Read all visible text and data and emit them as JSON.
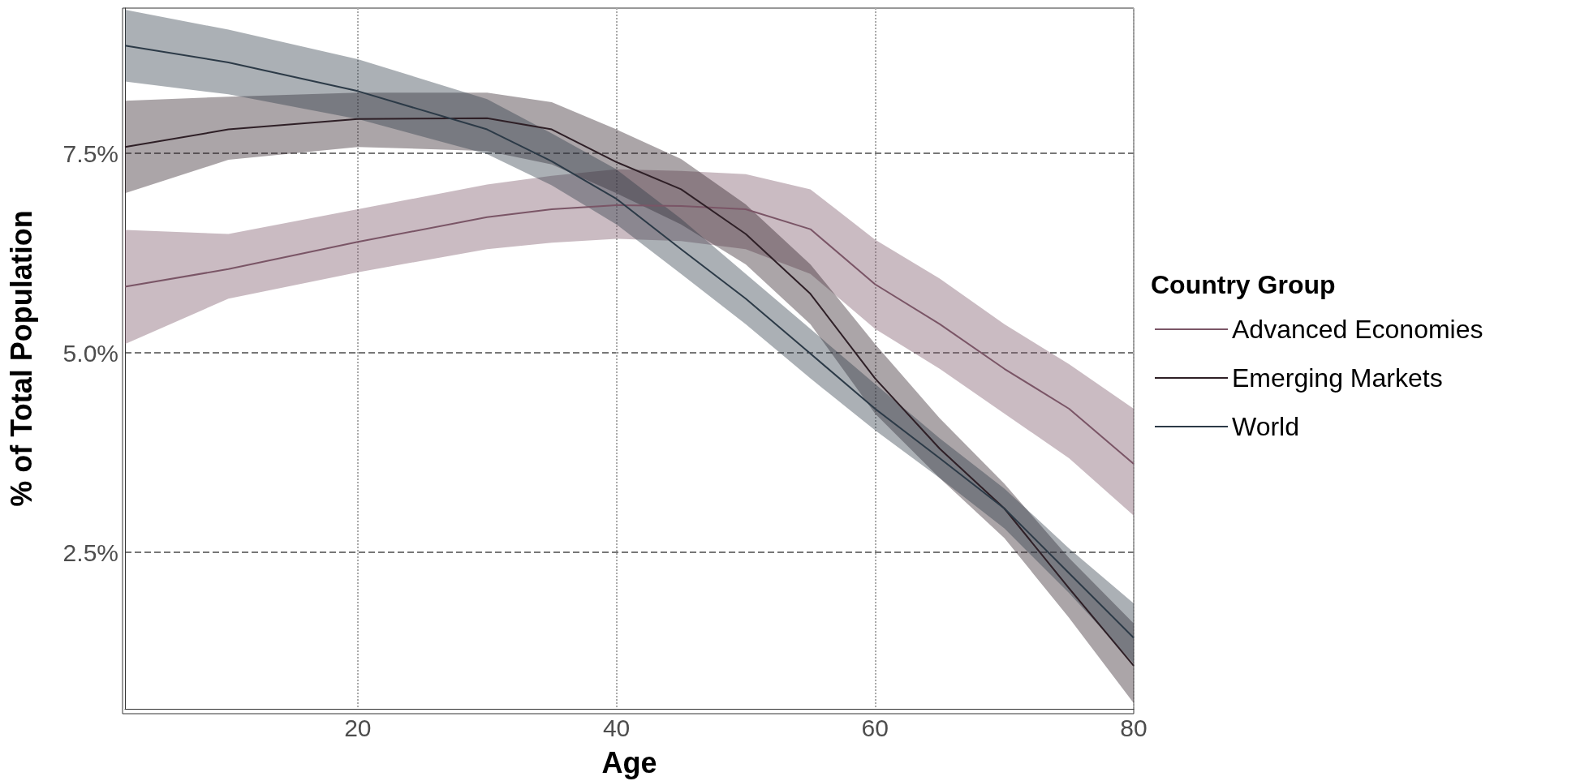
{
  "chart_data": {
    "type": "line",
    "xlabel": "Age",
    "ylabel": "% of Total Population",
    "legend_title": "Country Group",
    "x": [
      2,
      10,
      20,
      30,
      35,
      40,
      45,
      50,
      55,
      60,
      65,
      70,
      75,
      80
    ],
    "series": [
      {
        "name": "Advanced Economies",
        "color": "#7a5566",
        "values": [
          5.83,
          6.05,
          6.39,
          6.7,
          6.8,
          6.85,
          6.84,
          6.8,
          6.55,
          5.86,
          5.36,
          4.8,
          4.3,
          3.61
        ],
        "lower": [
          5.11,
          5.68,
          6.01,
          6.3,
          6.38,
          6.43,
          6.4,
          6.3,
          5.99,
          5.3,
          4.8,
          4.24,
          3.68,
          2.96
        ],
        "upper": [
          6.54,
          6.49,
          6.8,
          7.11,
          7.22,
          7.3,
          7.28,
          7.24,
          7.05,
          6.42,
          5.93,
          5.36,
          4.86,
          4.3
        ]
      },
      {
        "name": "Emerging Markets",
        "color": "#2e1f26",
        "values": [
          7.58,
          7.8,
          7.93,
          7.94,
          7.8,
          7.39,
          7.05,
          6.49,
          5.74,
          4.68,
          3.8,
          3.05,
          2.05,
          1.08
        ],
        "lower": [
          7.0,
          7.42,
          7.58,
          7.53,
          7.36,
          7.0,
          6.61,
          6.11,
          5.36,
          4.24,
          3.43,
          2.68,
          1.68,
          0.61
        ],
        "upper": [
          8.16,
          8.21,
          8.26,
          8.26,
          8.14,
          7.8,
          7.43,
          6.86,
          6.11,
          5.11,
          4.18,
          3.36,
          2.43,
          1.61
        ]
      },
      {
        "name": "World",
        "color": "#2c3a47",
        "values": [
          8.85,
          8.64,
          8.28,
          7.8,
          7.4,
          6.93,
          6.3,
          5.68,
          4.99,
          4.3,
          3.68,
          3.05,
          2.24,
          1.43
        ],
        "lower": [
          8.4,
          8.24,
          7.93,
          7.49,
          7.1,
          6.61,
          5.99,
          5.36,
          4.68,
          4.03,
          3.43,
          2.8,
          1.99,
          1.11
        ],
        "upper": [
          9.3,
          9.05,
          8.68,
          8.18,
          7.75,
          7.3,
          6.68,
          5.99,
          5.3,
          4.61,
          3.93,
          3.3,
          2.55,
          1.86
        ]
      }
    ],
    "xlim": [
      2,
      80
    ],
    "xticks": [
      20,
      40,
      60,
      80
    ],
    "ylim": [
      0.54,
      9.32
    ],
    "yticks": [
      {
        "value": 2.5,
        "label": "2.5%"
      },
      {
        "value": 5.0,
        "label": "5.0%"
      },
      {
        "value": 7.5,
        "label": "7.5%"
      }
    ],
    "grid": true,
    "legend": "right",
    "marker": "none",
    "line_style": "solid"
  }
}
